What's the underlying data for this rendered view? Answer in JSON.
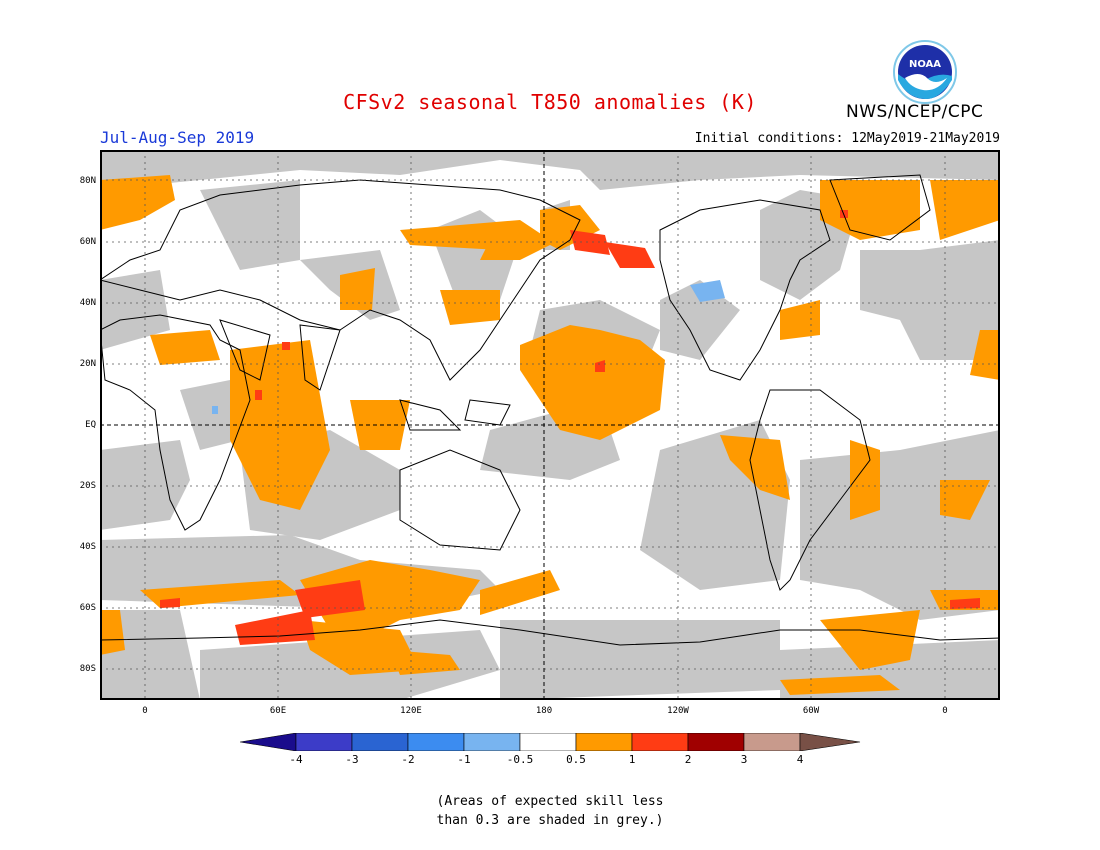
{
  "title": "CFSv2 seasonal T850 anomalies (K)",
  "agency": "NWS/NCEP/CPC",
  "logo_text": "NOAA",
  "period": "Jul-Aug-Sep 2019",
  "initial_conditions": "Initial conditions: 12May2019-21May2019",
  "lat_labels": [
    "80N",
    "60N",
    "40N",
    "20N",
    "EQ",
    "20S",
    "40S",
    "60S",
    "80S"
  ],
  "lon_labels": [
    "0",
    "60E",
    "120E",
    "180",
    "120W",
    "60W",
    "0"
  ],
  "colorbar": {
    "labels": [
      "-4",
      "-3",
      "-2",
      "-1",
      "-0.5",
      "0.5",
      "1",
      "2",
      "3",
      "4"
    ],
    "colors": [
      "#1a0c8c",
      "#3c3cc8",
      "#2a64d2",
      "#3c8cf0",
      "#78b4f0",
      "#ffffff",
      "#ff9a00",
      "#ff3c14",
      "#a00000",
      "#c89a8c",
      "#785046"
    ]
  },
  "note_line1": "(Areas of expected skill less",
  "note_line2": "than 0.3 are shaded in grey.)",
  "colors": {
    "grey": "#c6c6c6",
    "orange": "#ff9a00",
    "red": "#ff3c14",
    "lightblue": "#78b4f0"
  }
}
